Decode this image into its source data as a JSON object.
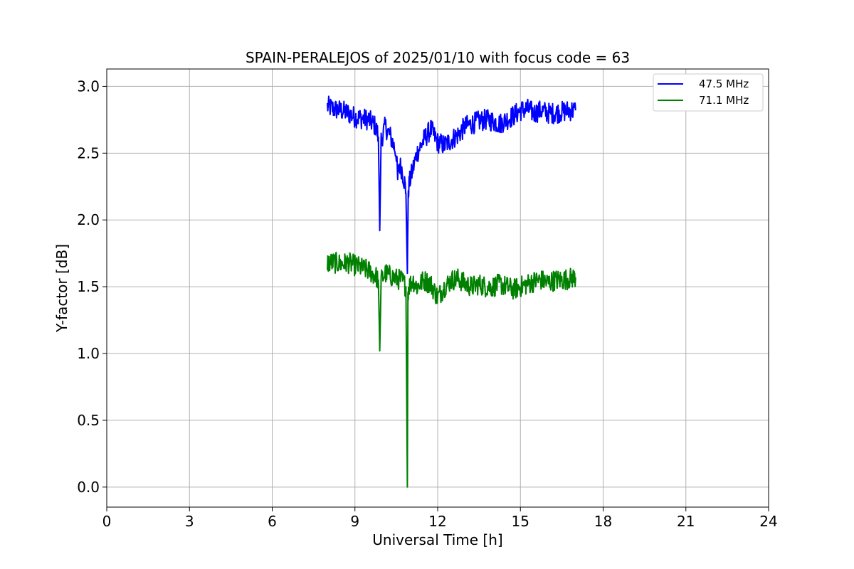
{
  "chart_data": {
    "type": "line",
    "title": "SPAIN-PERALEJOS of 2025/01/10 with focus code = 63",
    "xlabel": "Universal Time [h]",
    "ylabel": "Y-factor [dB]",
    "xlim": [
      0,
      24
    ],
    "ylim": [
      -0.15,
      3.13
    ],
    "xticks": [
      0,
      3,
      6,
      9,
      12,
      15,
      18,
      21,
      24
    ],
    "xtick_labels": [
      "0",
      "3",
      "6",
      "9",
      "12",
      "15",
      "18",
      "21",
      "24"
    ],
    "yticks": [
      0.0,
      0.5,
      1.0,
      1.5,
      2.0,
      2.5,
      3.0
    ],
    "ytick_labels": [
      "0.0",
      "0.5",
      "1.0",
      "1.5",
      "2.0",
      "2.5",
      "3.0"
    ],
    "grid": true,
    "legend_position": "top-right",
    "series": [
      {
        "name": "47.5 MHz",
        "color": "#0000ff",
        "x": [
          8.0,
          8.25,
          8.5,
          8.75,
          9.0,
          9.25,
          9.5,
          9.75,
          9.85,
          9.9,
          9.95,
          10.1,
          10.3,
          10.5,
          10.55,
          10.6,
          10.7,
          10.8,
          10.85,
          10.9,
          10.92,
          10.95,
          11.0,
          11.1,
          11.25,
          11.5,
          11.75,
          12.0,
          12.25,
          12.5,
          12.75,
          13.0,
          13.25,
          13.5,
          13.75,
          14.0,
          14.25,
          14.5,
          14.75,
          15.0,
          15.25,
          15.5,
          15.75,
          16.0,
          16.25,
          16.5,
          16.75,
          17.0
        ],
        "y": [
          2.85,
          2.83,
          2.82,
          2.8,
          2.77,
          2.76,
          2.75,
          2.7,
          2.62,
          1.92,
          2.6,
          2.7,
          2.62,
          2.5,
          2.3,
          2.42,
          2.38,
          2.28,
          2.2,
          1.6,
          2.05,
          2.25,
          2.3,
          2.38,
          2.5,
          2.6,
          2.68,
          2.58,
          2.56,
          2.6,
          2.64,
          2.7,
          2.72,
          2.74,
          2.75,
          2.74,
          2.72,
          2.75,
          2.78,
          2.82,
          2.83,
          2.8,
          2.82,
          2.8,
          2.8,
          2.81,
          2.82,
          2.82
        ]
      },
      {
        "name": "71.1 MHz",
        "color": "#008000",
        "x": [
          8.0,
          8.25,
          8.5,
          8.75,
          9.0,
          9.25,
          9.5,
          9.75,
          9.85,
          9.9,
          9.95,
          10.1,
          10.3,
          10.5,
          10.7,
          10.85,
          10.9,
          10.92,
          10.95,
          11.1,
          11.25,
          11.5,
          11.75,
          12.0,
          12.25,
          12.5,
          12.75,
          13.0,
          13.25,
          13.5,
          13.75,
          14.0,
          14.25,
          14.5,
          14.75,
          15.0,
          15.25,
          15.5,
          15.75,
          16.0,
          16.25,
          16.5,
          16.75,
          17.0
        ],
        "y": [
          1.68,
          1.68,
          1.67,
          1.68,
          1.66,
          1.64,
          1.62,
          1.58,
          1.55,
          1.02,
          1.55,
          1.6,
          1.58,
          1.56,
          1.55,
          1.5,
          0.0,
          1.45,
          1.5,
          1.55,
          1.5,
          1.55,
          1.52,
          1.42,
          1.5,
          1.55,
          1.56,
          1.52,
          1.5,
          1.52,
          1.5,
          1.5,
          1.52,
          1.5,
          1.48,
          1.5,
          1.52,
          1.54,
          1.55,
          1.53,
          1.55,
          1.55,
          1.56,
          1.57
        ]
      }
    ]
  }
}
